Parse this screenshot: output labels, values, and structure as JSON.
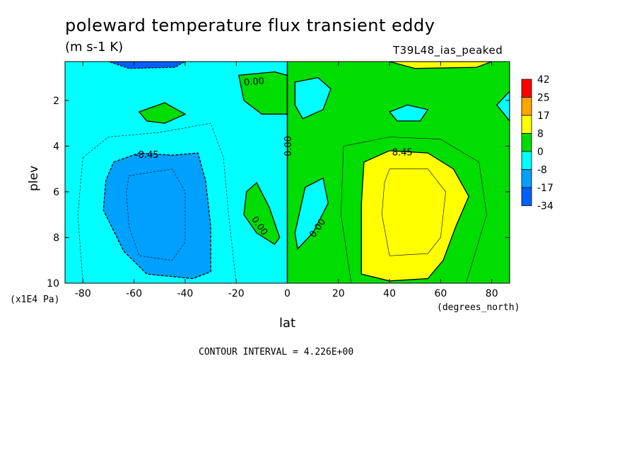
{
  "title": "poleward temperature flux transient eddy",
  "units": "(m s-1 K)",
  "dataset": "T39L48_ias_peaked",
  "ylabel": "plev",
  "xlabel": "lat",
  "yunit": "(x1E4 Pa)",
  "xunit": "(degrees_north)",
  "contour_interval": "CONTOUR INTERVAL = 4.226E+00",
  "colors": {
    "band_red": "#ff0000",
    "band_orange": "#ffa500",
    "band_yellow": "#ffff00",
    "band_green": "#00dd00",
    "band_cyan": "#00ffff",
    "band_lightblue": "#00a0ff",
    "band_blue": "#0060ff"
  },
  "chart_data": {
    "type": "contour",
    "xlim": [
      -87,
      87
    ],
    "ylim": [
      10,
      0.3
    ],
    "x_ticks": [
      -80,
      -60,
      -40,
      -20,
      0,
      20,
      40,
      60,
      80
    ],
    "x_tick_labels": [
      "-80",
      "-60",
      "-40",
      "-20",
      "0",
      "20",
      "40",
      "60",
      "80"
    ],
    "y_ticks": [
      2,
      4,
      6,
      8,
      10
    ],
    "y_tick_labels": [
      "2",
      "4",
      "6",
      "8",
      "10"
    ],
    "colorbar": {
      "labels": [
        "42",
        "25",
        "17",
        "8",
        "0",
        "-8",
        "-17",
        "-34"
      ],
      "colors": [
        "#ff0000",
        "#ffa500",
        "#ffff00",
        "#00dd00",
        "#00ffff",
        "#00a0ff",
        "#0060ff"
      ]
    },
    "contour_labels": [
      {
        "text": "0.00",
        "lat": -13,
        "plev": 1.2,
        "angle": -5
      },
      {
        "text": "0.00",
        "lat": 0.5,
        "plev": 4.0,
        "angle": -90
      },
      {
        "text": "-8.45",
        "lat": -55,
        "plev": 4.4,
        "angle": 0
      },
      {
        "text": "8.45",
        "lat": 45,
        "plev": 4.3,
        "angle": 0
      },
      {
        "text": "0.00",
        "lat": -11,
        "plev": 7.5,
        "angle": 55
      },
      {
        "text": "0.00",
        "lat": 12,
        "plev": 7.6,
        "angle": -55
      }
    ]
  }
}
